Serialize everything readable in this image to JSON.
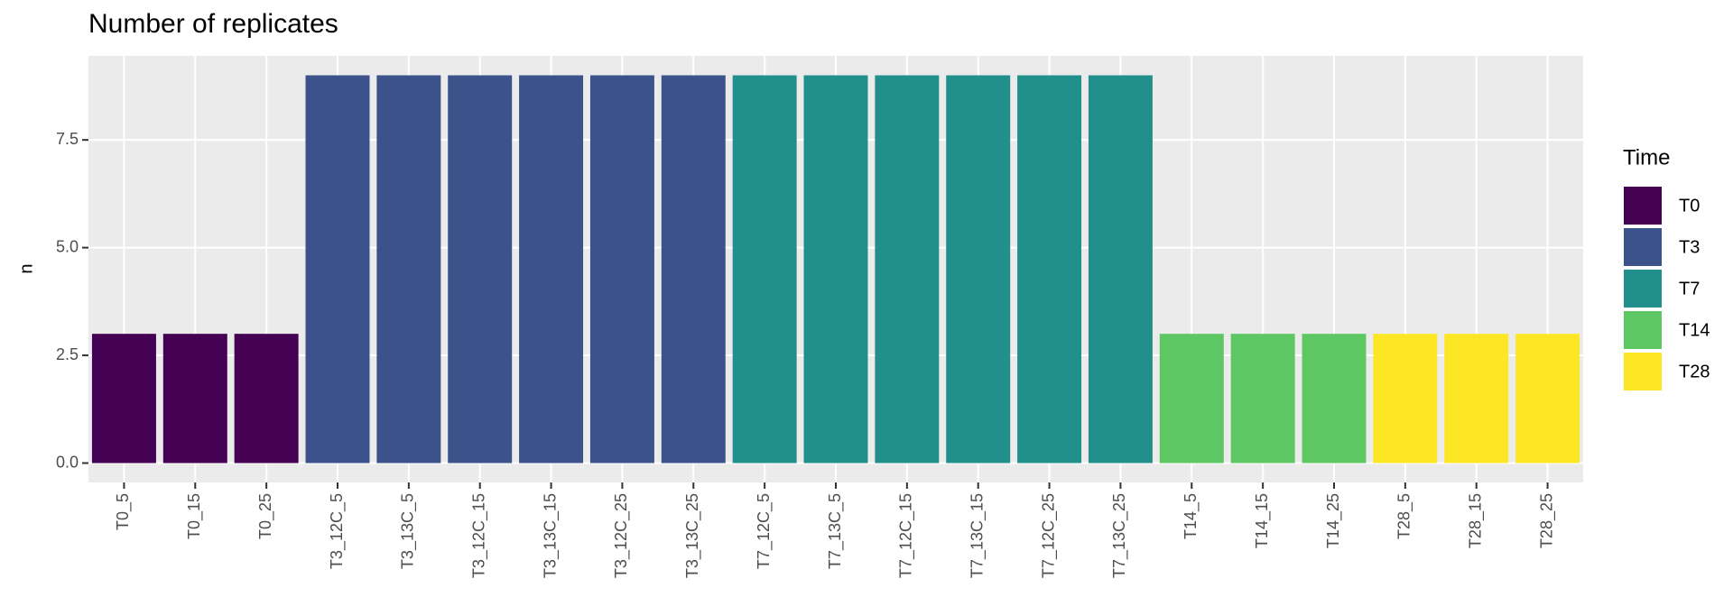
{
  "chart_data": {
    "type": "bar",
    "title": "Number of replicates",
    "y_label": "n",
    "categories": [
      "T0_5",
      "T0_15",
      "T0_25",
      "T3_12C_5",
      "T3_13C_5",
      "T3_12C_15",
      "T3_13C_15",
      "T3_12C_25",
      "T3_13C_25",
      "T7_12C_5",
      "T7_13C_5",
      "T7_12C_15",
      "T7_13C_15",
      "T7_12C_25",
      "T7_13C_25",
      "T14_5",
      "T14_15",
      "T14_25",
      "T28_5",
      "T28_15",
      "T28_25"
    ],
    "legend_title": "Time",
    "legend_position": "right",
    "grid": true,
    "series": [
      {
        "name": "T0",
        "color": "#440154",
        "values": [
          3,
          3,
          3,
          null,
          null,
          null,
          null,
          null,
          null,
          null,
          null,
          null,
          null,
          null,
          null,
          null,
          null,
          null,
          null,
          null,
          null
        ]
      },
      {
        "name": "T3",
        "color": "#3b528b",
        "values": [
          null,
          null,
          null,
          9,
          9,
          9,
          9,
          9,
          9,
          null,
          null,
          null,
          null,
          null,
          null,
          null,
          null,
          null,
          null,
          null,
          null
        ]
      },
      {
        "name": "T7",
        "color": "#21908c",
        "values": [
          null,
          null,
          null,
          null,
          null,
          null,
          null,
          null,
          null,
          9,
          9,
          9,
          9,
          9,
          9,
          null,
          null,
          null,
          null,
          null,
          null
        ]
      },
      {
        "name": "T14",
        "color": "#5dc863",
        "values": [
          null,
          null,
          null,
          null,
          null,
          null,
          null,
          null,
          null,
          null,
          null,
          null,
          null,
          null,
          null,
          3,
          3,
          3,
          null,
          null,
          null
        ]
      },
      {
        "name": "T28",
        "color": "#fde725",
        "values": [
          null,
          null,
          null,
          null,
          null,
          null,
          null,
          null,
          null,
          null,
          null,
          null,
          null,
          null,
          null,
          null,
          null,
          null,
          3,
          3,
          3
        ]
      }
    ],
    "ylim": [
      -0.45,
      9.45
    ],
    "yticks": [
      {
        "value": 0,
        "label": "0.0"
      },
      2.5,
      {
        "value": 5,
        "label": "5.0"
      },
      7.5
    ]
  }
}
